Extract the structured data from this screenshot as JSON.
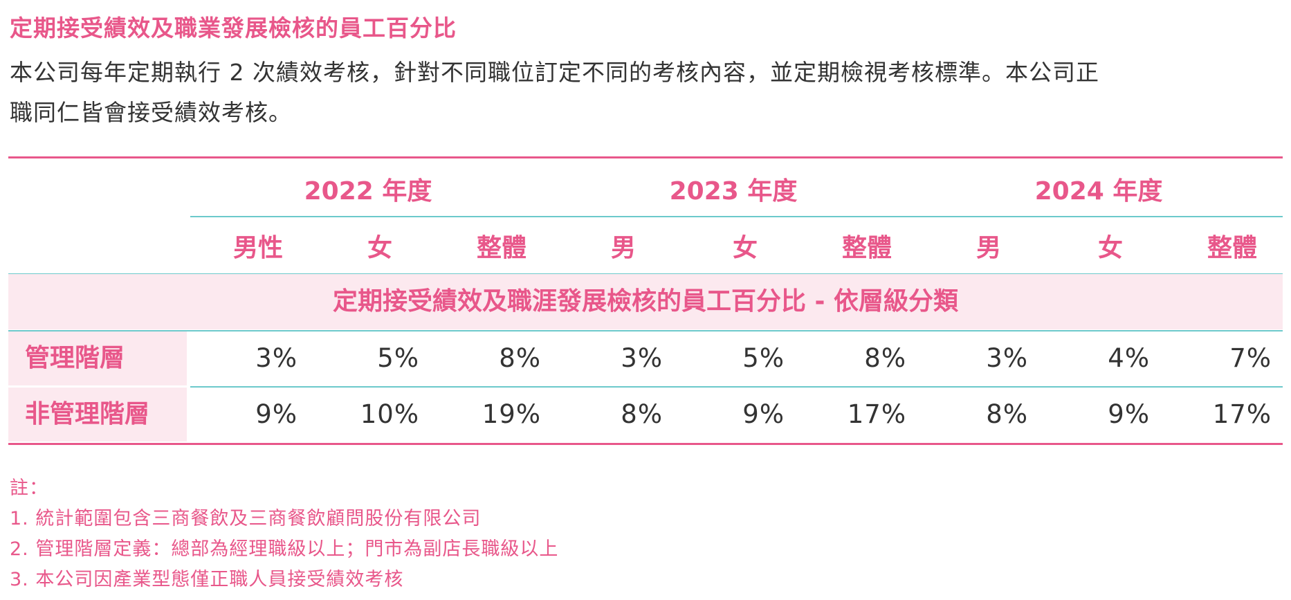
{
  "title": "定期接受績效及職業發展檢核的員工百分比",
  "intro": {
    "line1": "本公司每年定期執行 2 次績效考核，針對不同職位訂定不同的考核內容，並定期檢視考核標準。本公司正",
    "line2": "職同仁皆會接受績效考核。"
  },
  "table": {
    "years": [
      "2022 年度",
      "2023 年度",
      "2024 年度"
    ],
    "genders": [
      "男性",
      "女",
      "整體",
      "男",
      "女",
      "整體",
      "男",
      "女",
      "整體"
    ],
    "section_heading": "定期接受績效及職涯發展檢核的員工百分比 - 依層級分類",
    "rows": [
      {
        "label": "管理階層",
        "values": [
          "3%",
          "5%",
          "8%",
          "3%",
          "5%",
          "8%",
          "3%",
          "4%",
          "7%"
        ]
      },
      {
        "label": "非管理階層",
        "values": [
          "9%",
          "10%",
          "19%",
          "8%",
          "9%",
          "17%",
          "8%",
          "9%",
          "17%"
        ]
      }
    ]
  },
  "notes": {
    "heading": "註：",
    "items": [
      "1. 統計範圍包含三商餐飲及三商餐飲顧問股份有限公司",
      "2. 管理階層定義：總部為經理職級以上；門市為副店長職級以上",
      "3. 本公司因產業型態僅正職人員接受績效考核"
    ]
  },
  "colors": {
    "accent_pink": "#e8578a",
    "teal_rule": "#6cc9cb",
    "band_bg": "#fce9ef",
    "body_text": "#333333"
  }
}
